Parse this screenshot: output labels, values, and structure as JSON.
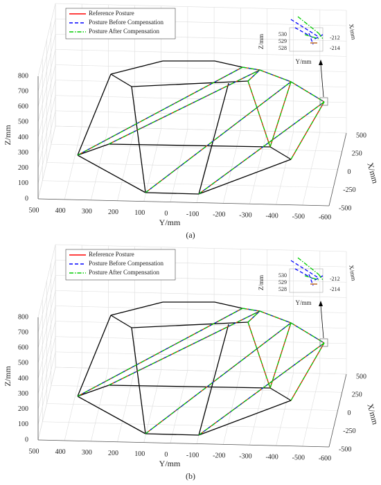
{
  "chart_data": [
    {
      "type": "line3d",
      "caption": "(a)",
      "xlabel": "X/mm",
      "ylabel": "Y/mm",
      "zlabel": "Z/mm",
      "series": [
        {
          "name": "Reference Posture",
          "color": "#ff0000",
          "style": "solid"
        },
        {
          "name": "Posture Before Compensation",
          "color": "#0000ff",
          "style": "dashed"
        },
        {
          "name": "Posture After Compensation",
          "color": "#00cc00",
          "style": "dashdot"
        }
      ],
      "xlim": [
        -500,
        500
      ],
      "xticks": [
        -500,
        -250,
        0,
        250,
        500
      ],
      "ylim": [
        -600,
        500
      ],
      "yticks": [
        -600,
        -500,
        -400,
        -300,
        -200,
        -100,
        0,
        100,
        200,
        300,
        400,
        500
      ],
      "zlim": [
        0,
        800
      ],
      "zticks": [
        0,
        100,
        200,
        300,
        400,
        500,
        600,
        700,
        800
      ],
      "grid": true,
      "legend": "upper left",
      "inset": {
        "zlabel": "Z/mm",
        "ylabel": "Y/mm",
        "xlabel": "X/mm",
        "zticks": [
          528,
          529,
          530
        ],
        "xticks": [
          -214,
          -212
        ]
      }
    },
    {
      "type": "line3d",
      "caption": "(b)",
      "xlabel": "X/mm",
      "ylabel": "Y/mm",
      "zlabel": "Z/mm",
      "series": [
        {
          "name": "Reference Posture",
          "color": "#ff0000",
          "style": "solid"
        },
        {
          "name": "Posture Before Compensation",
          "color": "#0000ff",
          "style": "dashed"
        },
        {
          "name": "Posture After Compensation",
          "color": "#00cc00",
          "style": "dashdot"
        }
      ],
      "xlim": [
        -500,
        500
      ],
      "xticks": [
        -500,
        -250,
        0,
        250,
        500
      ],
      "ylim": [
        -600,
        500
      ],
      "yticks": [
        -600,
        -500,
        -400,
        -300,
        -200,
        -100,
        0,
        100,
        200,
        300,
        400,
        500
      ],
      "zlim": [
        0,
        800
      ],
      "zticks": [
        0,
        100,
        200,
        300,
        400,
        500,
        600,
        700,
        800
      ],
      "grid": true,
      "legend": "upper left",
      "inset": {
        "zlabel": "Z/mm",
        "ylabel": "Y/mm",
        "xlabel": "X/mm",
        "zticks": [
          528,
          529,
          530
        ],
        "xticks": [
          -214,
          -212
        ]
      }
    }
  ]
}
